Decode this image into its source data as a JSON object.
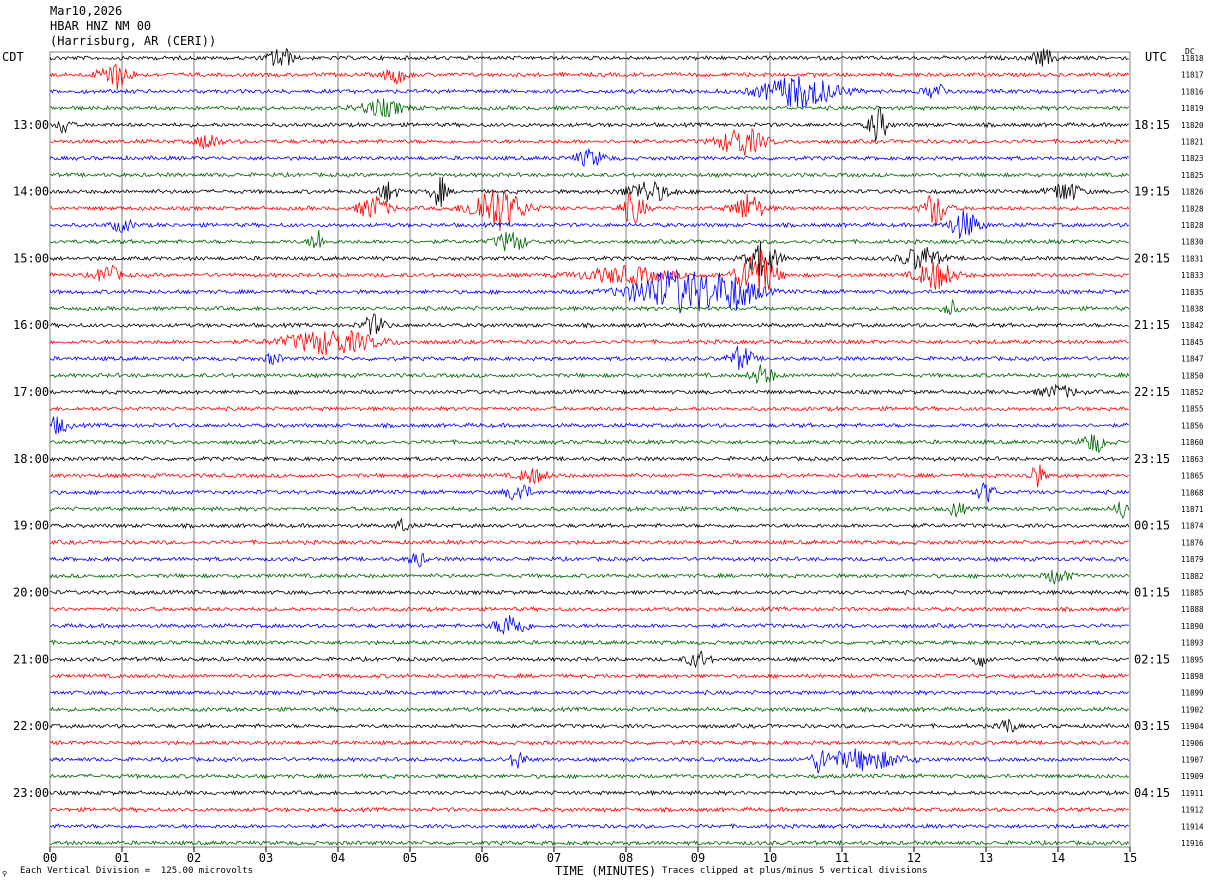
{
  "header": {
    "date": "Mar10,2026",
    "station": "HBAR HNZ NM 00",
    "location": "(Harrisburg, AR (CERI))"
  },
  "left_axis_title": "CDT",
  "right_axis_title": "UTC",
  "dc_title": "DC",
  "corner_mark": "⚲",
  "footer": {
    "scale_note": "Each Vertical Division =  125.00 microvolts",
    "clip_note": "Traces clipped at plus/minus 5 vertical divisions"
  },
  "colors": {
    "trace_cycle": [
      "#000000",
      "#ff0000",
      "#0000ff",
      "#006400"
    ],
    "grid": "#808080"
  },
  "chart_data": {
    "type": "line",
    "title": "",
    "xlabel": "TIME (MINUTES)",
    "ylabel": "",
    "xlim": [
      0,
      15
    ],
    "x_ticks": [
      "00",
      "01",
      "02",
      "03",
      "04",
      "05",
      "06",
      "07",
      "08",
      "09",
      "10",
      "11",
      "12",
      "13",
      "14",
      "15"
    ],
    "rows": 48,
    "left_hour_labels": [
      {
        "row": 4,
        "label": "13:00"
      },
      {
        "row": 8,
        "label": "14:00"
      },
      {
        "row": 12,
        "label": "15:00"
      },
      {
        "row": 16,
        "label": "16:00"
      },
      {
        "row": 20,
        "label": "17:00"
      },
      {
        "row": 24,
        "label": "18:00"
      },
      {
        "row": 28,
        "label": "19:00"
      },
      {
        "row": 32,
        "label": "20:00"
      },
      {
        "row": 36,
        "label": "21:00"
      },
      {
        "row": 40,
        "label": "22:00"
      },
      {
        "row": 44,
        "label": "23:00"
      }
    ],
    "right_hour_labels": [
      {
        "row": 4,
        "label": "18:15"
      },
      {
        "row": 8,
        "label": "19:15"
      },
      {
        "row": 12,
        "label": "20:15"
      },
      {
        "row": 16,
        "label": "21:15"
      },
      {
        "row": 20,
        "label": "22:15"
      },
      {
        "row": 24,
        "label": "23:15"
      },
      {
        "row": 28,
        "label": "00:15"
      },
      {
        "row": 32,
        "label": "01:15"
      },
      {
        "row": 36,
        "label": "02:15"
      },
      {
        "row": 40,
        "label": "03:15"
      },
      {
        "row": 44,
        "label": "04:15"
      }
    ],
    "dc_values": [
      "11818",
      "11817",
      "11816",
      "11819",
      "11820",
      "11821",
      "11823",
      "11825",
      "11826",
      "11828",
      "11828",
      "11830",
      "11831",
      "11833",
      "11835",
      "11838",
      "11842",
      "11845",
      "11847",
      "11850",
      "11852",
      "11855",
      "11856",
      "11860",
      "11863",
      "11865",
      "11868",
      "11871",
      "11874",
      "11876",
      "11879",
      "11882",
      "11885",
      "11888",
      "11890",
      "11893",
      "11895",
      "11898",
      "11899",
      "11902",
      "11904",
      "11906",
      "11907",
      "11909",
      "11911",
      "11912",
      "11914",
      "11916"
    ],
    "events": [
      {
        "row": 0,
        "min": 3.2,
        "amp": 12,
        "width": 0.15
      },
      {
        "row": 0,
        "min": 13.8,
        "amp": 8,
        "width": 0.15
      },
      {
        "row": 1,
        "min": 0.9,
        "amp": 14,
        "width": 0.2
      },
      {
        "row": 1,
        "min": 4.8,
        "amp": 8,
        "width": 0.15
      },
      {
        "row": 2,
        "min": 10.4,
        "amp": 16,
        "width": 0.5
      },
      {
        "row": 2,
        "min": 12.3,
        "amp": 8,
        "width": 0.15
      },
      {
        "row": 3,
        "min": 4.6,
        "amp": 8,
        "width": 0.3
      },
      {
        "row": 4,
        "min": 11.5,
        "amp": 18,
        "width": 0.12
      },
      {
        "row": 4,
        "min": 0.2,
        "amp": 10,
        "width": 0.08
      },
      {
        "row": 5,
        "min": 9.6,
        "amp": 14,
        "width": 0.3
      },
      {
        "row": 5,
        "min": 2.2,
        "amp": 8,
        "width": 0.15
      },
      {
        "row": 6,
        "min": 7.5,
        "amp": 8,
        "width": 0.2
      },
      {
        "row": 8,
        "min": 5.4,
        "amp": 16,
        "width": 0.1
      },
      {
        "row": 8,
        "min": 8.3,
        "amp": 10,
        "width": 0.3
      },
      {
        "row": 8,
        "min": 14.1,
        "amp": 10,
        "width": 0.2
      },
      {
        "row": 8,
        "min": 4.7,
        "amp": 10,
        "width": 0.12
      },
      {
        "row": 9,
        "min": 6.2,
        "amp": 22,
        "width": 0.35
      },
      {
        "row": 9,
        "min": 4.5,
        "amp": 12,
        "width": 0.2
      },
      {
        "row": 9,
        "min": 8.1,
        "amp": 16,
        "width": 0.15
      },
      {
        "row": 9,
        "min": 12.3,
        "amp": 18,
        "width": 0.15
      },
      {
        "row": 9,
        "min": 9.7,
        "amp": 14,
        "width": 0.2
      },
      {
        "row": 10,
        "min": 12.7,
        "amp": 14,
        "width": 0.2
      },
      {
        "row": 10,
        "min": 1.0,
        "amp": 6,
        "width": 0.15
      },
      {
        "row": 11,
        "min": 6.4,
        "amp": 10,
        "width": 0.2
      },
      {
        "row": 11,
        "min": 3.7,
        "amp": 14,
        "width": 0.08
      },
      {
        "row": 12,
        "min": 9.9,
        "amp": 18,
        "width": 0.2
      },
      {
        "row": 12,
        "min": 12.1,
        "amp": 12,
        "width": 0.25
      },
      {
        "row": 13,
        "min": 9.8,
        "amp": 26,
        "width": 0.25
      },
      {
        "row": 13,
        "min": 12.3,
        "amp": 14,
        "width": 0.25
      },
      {
        "row": 13,
        "min": 0.8,
        "amp": 10,
        "width": 0.15
      },
      {
        "row": 13,
        "min": 8.0,
        "amp": 8,
        "width": 0.6
      },
      {
        "row": 14,
        "min": 8.7,
        "amp": 22,
        "width": 0.6
      },
      {
        "row": 14,
        "min": 9.5,
        "amp": 14,
        "width": 0.35
      },
      {
        "row": 15,
        "min": 12.5,
        "amp": 8,
        "width": 0.1
      },
      {
        "row": 16,
        "min": 4.5,
        "amp": 10,
        "width": 0.15
      },
      {
        "row": 17,
        "min": 3.9,
        "amp": 12,
        "width": 0.6
      },
      {
        "row": 18,
        "min": 9.6,
        "amp": 12,
        "width": 0.15
      },
      {
        "row": 18,
        "min": 3.1,
        "amp": 6,
        "width": 0.1
      },
      {
        "row": 19,
        "min": 9.9,
        "amp": 10,
        "width": 0.15
      },
      {
        "row": 20,
        "min": 14.0,
        "amp": 6,
        "width": 0.25
      },
      {
        "row": 22,
        "min": 0.1,
        "amp": 8,
        "width": 0.15
      },
      {
        "row": 23,
        "min": 14.5,
        "amp": 10,
        "width": 0.15
      },
      {
        "row": 25,
        "min": 13.7,
        "amp": 12,
        "width": 0.1
      },
      {
        "row": 25,
        "min": 6.7,
        "amp": 7,
        "width": 0.2
      },
      {
        "row": 26,
        "min": 6.5,
        "amp": 10,
        "width": 0.15
      },
      {
        "row": 26,
        "min": 13.0,
        "amp": 10,
        "width": 0.12
      },
      {
        "row": 27,
        "min": 14.9,
        "amp": 10,
        "width": 0.1
      },
      {
        "row": 27,
        "min": 12.6,
        "amp": 8,
        "width": 0.1
      },
      {
        "row": 28,
        "min": 4.9,
        "amp": 6,
        "width": 0.1
      },
      {
        "row": 30,
        "min": 5.1,
        "amp": 8,
        "width": 0.1
      },
      {
        "row": 31,
        "min": 14.0,
        "amp": 8,
        "width": 0.15
      },
      {
        "row": 34,
        "min": 6.4,
        "amp": 12,
        "width": 0.2
      },
      {
        "row": 36,
        "min": 9.0,
        "amp": 8,
        "width": 0.15
      },
      {
        "row": 36,
        "min": 12.9,
        "amp": 8,
        "width": 0.1
      },
      {
        "row": 40,
        "min": 13.3,
        "amp": 8,
        "width": 0.1
      },
      {
        "row": 42,
        "min": 10.7,
        "amp": 12,
        "width": 0.1
      },
      {
        "row": 42,
        "min": 11.3,
        "amp": 10,
        "width": 0.5
      },
      {
        "row": 42,
        "min": 6.5,
        "amp": 10,
        "width": 0.1
      }
    ]
  }
}
